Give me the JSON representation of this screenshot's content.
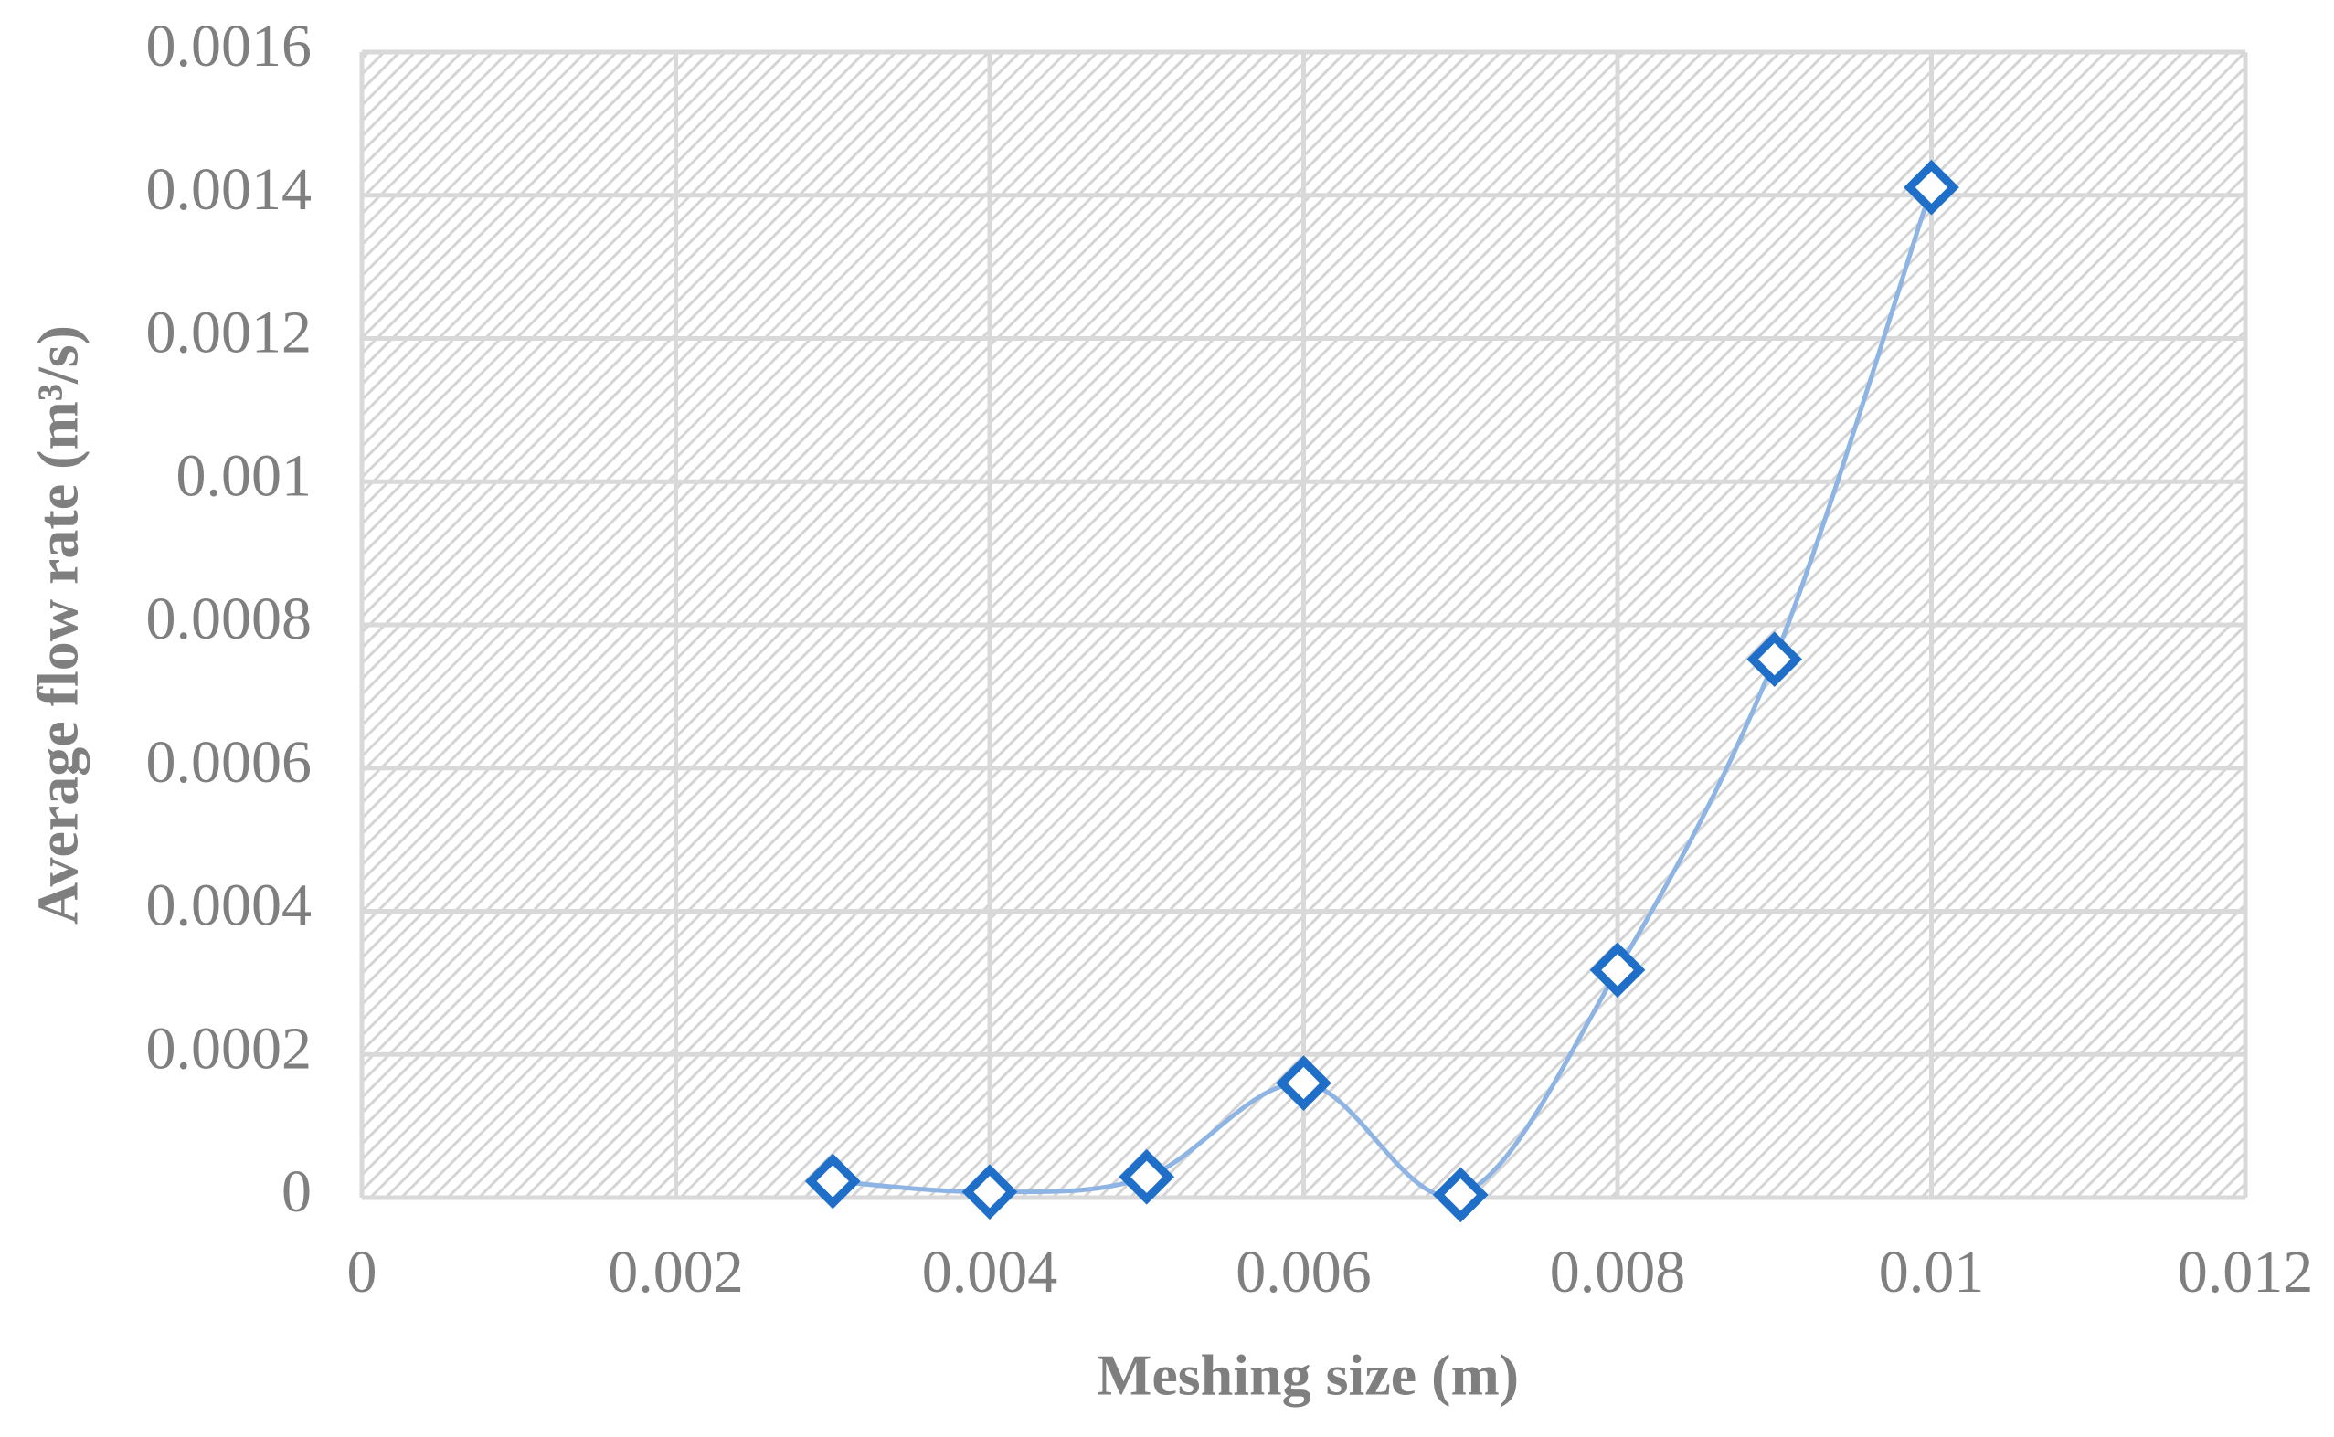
{
  "chart_data": {
    "type": "scatter",
    "xlabel": "Meshing size (m)",
    "ylabel": "Average flow rate (m³/s)",
    "x": [
      0.003,
      0.004,
      0.005,
      0.006,
      0.007,
      0.008,
      0.009,
      0.01
    ],
    "values": [
      2.3e-05,
      8e-06,
      2.9e-05,
      0.00016,
      4e-06,
      0.000318,
      0.000752,
      0.001411
    ],
    "color": "#1f6fc8",
    "line_color": "#8eb4e3",
    "smooth": true,
    "marker": "diamond",
    "xlim": [
      0,
      0.012
    ],
    "xticks": [
      0,
      0.002,
      0.004,
      0.006,
      0.008,
      0.01,
      0.012
    ],
    "ylim": [
      0,
      0.0016
    ],
    "yticks": [
      0,
      0.0002,
      0.0004,
      0.0006,
      0.0008,
      0.001,
      0.0012,
      0.0014,
      0.0016
    ],
    "grid": true
  }
}
